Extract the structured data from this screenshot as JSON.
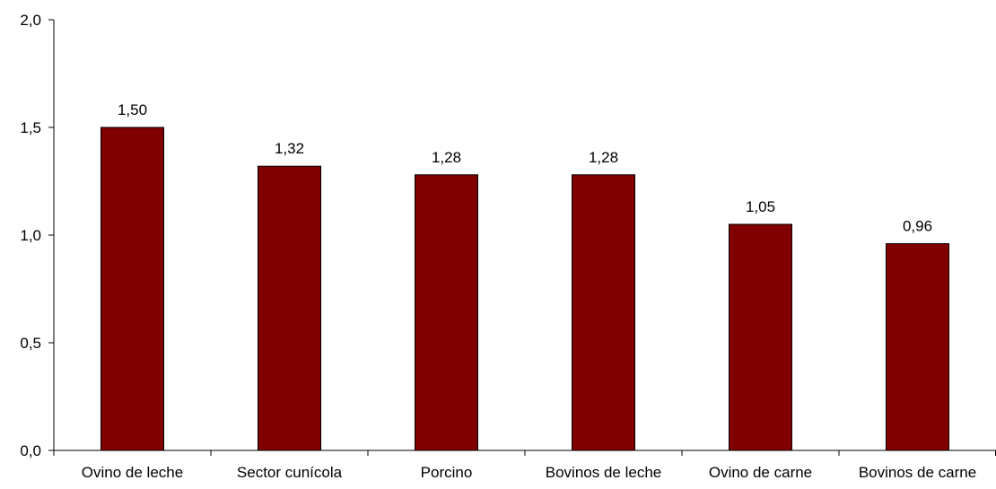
{
  "chart_data": {
    "type": "bar",
    "title": "",
    "xlabel": "",
    "ylabel": "",
    "categories": [
      "Ovino de leche",
      "Sector cunícola",
      "Porcino",
      "Bovinos de leche",
      "Ovino de carne",
      "Bovinos de carne"
    ],
    "values": [
      1.5,
      1.32,
      1.28,
      1.28,
      1.05,
      0.96
    ],
    "data_labels": [
      "1,50",
      "1,32",
      "1,28",
      "1,28",
      "1,05",
      "0,96"
    ],
    "ylim": [
      0,
      2.0
    ],
    "yticks": [
      0,
      0.5,
      1.0,
      1.5,
      2.0
    ],
    "ytick_labels": [
      "0,0",
      "0,5",
      "1,0",
      "1,5",
      "2,0"
    ],
    "grid": false,
    "legend": "none",
    "colors": {
      "bar": "#800000",
      "bar_border": "#000000",
      "axis": "#000000"
    }
  }
}
